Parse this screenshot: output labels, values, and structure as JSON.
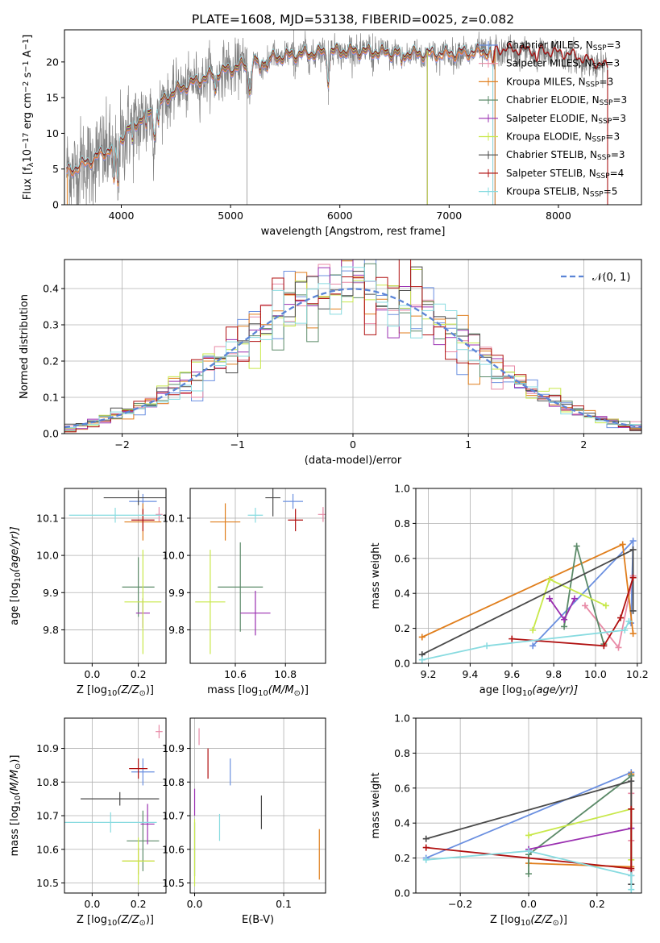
{
  "figure": {
    "title": "PLATE=1608, MJD=53138, FIBERID=0025, z=0.082"
  },
  "colors": {
    "Chabrier MILES": "#6a8fe0",
    "Salpeter MILES": "#e88aa6",
    "Kroupa MILES": "#e07e1c",
    "Chabrier ELODIE": "#5b8a68",
    "Salpeter ELODIE": "#9a2fb0",
    "Kroupa ELODIE": "#c8e84a",
    "Chabrier STELIB": "#4a4a4a",
    "Salpeter STELIB": "#b01010",
    "Kroupa STELIB": "#88dbe0",
    "data": "#808080",
    "gaussian": "#5b84d6",
    "grid": "#b0b0b0"
  },
  "chart_data": [
    {
      "id": "spectrum",
      "type": "line",
      "xlabel": "wavelength [Angstrom, rest frame]",
      "ylabel": "Flux [f",
      "ylabel_sub": "λ",
      "ylabel_rest": "10",
      "ylabel_sup": "−17",
      "ylabel_rest2": " erg cm",
      "ylabel_sup2": "−2",
      "ylabel_rest3": " s",
      "ylabel_sup3": "−1",
      "ylabel_rest4": " A",
      "ylabel_sup4": "−1",
      "ylabel_end": "]",
      "xlim": [
        3480,
        8760
      ],
      "ylim": [
        0,
        24.5
      ],
      "xticks": [
        4000,
        5000,
        6000,
        7000,
        8000
      ],
      "yticks": [
        0,
        5,
        10,
        15,
        20
      ],
      "grid": false,
      "legend": "top-right",
      "data_range": [
        3500,
        8450
      ],
      "continuum_knots": [
        [
          3500,
          4.5
        ],
        [
          3700,
          6.0
        ],
        [
          3900,
          7.8
        ],
        [
          4100,
          11.0
        ],
        [
          4300,
          13.5
        ],
        [
          4500,
          16.0
        ],
        [
          4800,
          18.0
        ],
        [
          5000,
          19.0
        ],
        [
          5300,
          20.3
        ],
        [
          5600,
          21.0
        ],
        [
          6000,
          21.5
        ],
        [
          6300,
          21.4
        ],
        [
          6600,
          21.1
        ],
        [
          7000,
          21.1
        ],
        [
          7400,
          21.5
        ],
        [
          7800,
          21.3
        ],
        [
          8100,
          20.8
        ],
        [
          8450,
          19.0
        ]
      ],
      "absorption_lines": [
        [
          3934,
          6.0,
          8
        ],
        [
          3968,
          6.0,
          8
        ],
        [
          4102,
          3.0,
          6
        ],
        [
          4226,
          2.5,
          6
        ],
        [
          4304,
          3.5,
          12
        ],
        [
          4340,
          3.0,
          6
        ],
        [
          4861,
          2.5,
          6
        ],
        [
          5175,
          3.5,
          14
        ],
        [
          5270,
          2.0,
          8
        ],
        [
          5335,
          1.5,
          8
        ],
        [
          5893,
          4.0,
          8
        ],
        [
          6563,
          2.0,
          6
        ],
        [
          7400,
          2.0,
          10
        ],
        [
          7800,
          1.5,
          10
        ]
      ],
      "models": [
        {
          "name": "Chabrier MILES",
          "label": "Chabrier MILES, N",
          "sub": "SSP",
          "suffix": "=3"
        },
        {
          "name": "Salpeter MILES",
          "label": "Salpeter MILES, N",
          "sub": "SSP",
          "suffix": "=3"
        },
        {
          "name": "Kroupa MILES",
          "label": "Kroupa MILES, N",
          "sub": "SSP",
          "suffix": "=3"
        },
        {
          "name": "Chabrier ELODIE",
          "label": "Chabrier ELODIE, N",
          "sub": "SSP",
          "suffix": "=3"
        },
        {
          "name": "Salpeter ELODIE",
          "label": "Salpeter ELODIE, N",
          "sub": "SSP",
          "suffix": "=3"
        },
        {
          "name": "Kroupa ELODIE",
          "label": "Kroupa ELODIE, N",
          "sub": "SSP",
          "suffix": "=3"
        },
        {
          "name": "Chabrier STELIB",
          "label": "Chabrier STELIB, N",
          "sub": "SSP",
          "suffix": "=3"
        },
        {
          "name": "Salpeter STELIB",
          "label": "Salpeter STELIB, N",
          "sub": "SSP",
          "suffix": "=4"
        },
        {
          "name": "Kroupa STELIB",
          "label": "Kroupa STELIB, N",
          "sub": "SSP",
          "suffix": "=5"
        }
      ],
      "model_ranges": [
        [
          3500,
          7420
        ],
        [
          3500,
          7400
        ],
        [
          3500,
          7420
        ],
        [
          4000,
          6800
        ],
        [
          4000,
          6800
        ],
        [
          4000,
          6800
        ],
        [
          3500,
          8450
        ],
        [
          3500,
          8450
        ],
        [
          3500,
          7400
        ]
      ]
    },
    {
      "id": "residuals",
      "type": "line",
      "xlabel": "(data-model)/error",
      "ylabel": "Normed distribution",
      "xlim": [
        -2.5,
        2.5
      ],
      "ylim": [
        0,
        0.48
      ],
      "xticks": [
        -2,
        -1,
        0,
        1,
        2
      ],
      "yticks": [
        0.0,
        0.1,
        0.2,
        0.3,
        0.4
      ],
      "grid": true,
      "legend": "top-right",
      "legend_label": "𝒩(0, 1)",
      "bin_width": 0.1,
      "gaussian": {
        "mean": 0,
        "sigma": 1
      }
    },
    {
      "id": "age_z",
      "type": "scatter",
      "xlabel": "Z [log",
      "xlabel_sub": "10",
      "xlabel_rest": "(Z/Z",
      "xlabel_sub2": "⊙",
      "xlabel_end": ")]",
      "ylabel": "age  [log",
      "ylabel_sub": "10",
      "ylabel_rest": "(age/yr)]",
      "xlim": [
        -0.12,
        0.32
      ],
      "ylim": [
        9.71,
        10.18
      ],
      "xticks": [
        0.0,
        0.2
      ],
      "yticks": [
        9.8,
        9.9,
        10.0,
        10.1
      ],
      "grid": true,
      "points": [
        {
          "model": "Chabrier MILES",
          "x": 0.22,
          "y": 10.145,
          "xerr": 0.06,
          "yerr": 0.02
        },
        {
          "model": "Salpeter MILES",
          "x": 0.29,
          "y": 10.11,
          "xerr": 0.015,
          "yerr": 0.02
        },
        {
          "model": "Kroupa MILES",
          "x": 0.22,
          "y": 10.09,
          "xerr": 0.08,
          "yerr": 0.05
        },
        {
          "model": "Chabrier ELODIE",
          "x": 0.2,
          "y": 9.915,
          "xerr": 0.07,
          "yerr": 0.08
        },
        {
          "model": "Salpeter ELODIE",
          "x": 0.22,
          "y": 9.845,
          "xerr": 0.03,
          "yerr": 0.04
        },
        {
          "model": "Kroupa ELODIE",
          "x": 0.22,
          "y": 9.875,
          "xerr": 0.08,
          "yerr": 0.14
        },
        {
          "model": "Chabrier STELIB",
          "x": 0.2,
          "y": 10.155,
          "xerr": 0.15,
          "yerr": 0.02
        },
        {
          "model": "Salpeter STELIB",
          "x": 0.22,
          "y": 10.095,
          "xerr": 0.05,
          "yerr": 0.03
        },
        {
          "model": "Kroupa STELIB",
          "x": 0.1,
          "y": 10.108,
          "xerr": 0.2,
          "yerr": 0.02
        }
      ]
    },
    {
      "id": "age_mass",
      "type": "scatter",
      "xlabel": "mass [log",
      "xlabel_sub": "10",
      "xlabel_rest": "(M/M",
      "xlabel_sub2": "⊙",
      "xlabel_end": ")]",
      "ylabel": "",
      "xlim": [
        10.42,
        10.96
      ],
      "ylim": [
        9.71,
        10.18
      ],
      "xticks": [
        10.6,
        10.8
      ],
      "yticks": [
        9.8,
        9.9,
        10.0,
        10.1
      ],
      "grid": true,
      "points": [
        {
          "model": "Chabrier MILES",
          "x": 10.83,
          "y": 10.145,
          "xerr": 0.04,
          "yerr": 0.02
        },
        {
          "model": "Salpeter MILES",
          "x": 10.95,
          "y": 10.11,
          "xerr": 0.02,
          "yerr": 0.02
        },
        {
          "model": "Kroupa MILES",
          "x": 10.56,
          "y": 10.09,
          "xerr": 0.06,
          "yerr": 0.05
        },
        {
          "model": "Chabrier ELODIE",
          "x": 10.62,
          "y": 9.915,
          "xerr": 0.09,
          "yerr": 0.12
        },
        {
          "model": "Salpeter ELODIE",
          "x": 10.68,
          "y": 9.845,
          "xerr": 0.06,
          "yerr": 0.06
        },
        {
          "model": "Kroupa ELODIE",
          "x": 10.5,
          "y": 9.875,
          "xerr": 0.06,
          "yerr": 0.14
        },
        {
          "model": "Chabrier STELIB",
          "x": 10.75,
          "y": 10.155,
          "xerr": 0.03,
          "yerr": 0.05
        },
        {
          "model": "Salpeter STELIB",
          "x": 10.84,
          "y": 10.095,
          "xerr": 0.03,
          "yerr": 0.03
        },
        {
          "model": "Kroupa STELIB",
          "x": 10.68,
          "y": 10.108,
          "xerr": 0.03,
          "yerr": 0.02
        }
      ]
    },
    {
      "id": "weight_age",
      "type": "line",
      "xlabel": "age  [log",
      "xlabel_sub": "10",
      "xlabel_rest": "(age/yr)]",
      "ylabel": "mass weight",
      "xlim": [
        9.14,
        10.22
      ],
      "ylim": [
        0,
        1.0
      ],
      "xticks": [
        9.2,
        9.4,
        9.6,
        9.8,
        10.0,
        10.2
      ],
      "yticks": [
        0.0,
        0.2,
        0.4,
        0.6,
        0.8,
        1.0
      ],
      "grid": true,
      "series": [
        {
          "model": "Chabrier MILES",
          "x": [
            9.7,
            10.18,
            10.17
          ],
          "y": [
            0.1,
            0.7,
            0.23
          ]
        },
        {
          "model": "Salpeter MILES",
          "x": [
            9.95,
            10.11,
            10.18
          ],
          "y": [
            0.33,
            0.09,
            0.5
          ]
        },
        {
          "model": "Kroupa MILES",
          "x": [
            9.17,
            10.13,
            10.18
          ],
          "y": [
            0.15,
            0.68,
            0.17
          ]
        },
        {
          "model": "Chabrier ELODIE",
          "x": [
            9.85,
            9.91,
            10.04
          ],
          "y": [
            0.21,
            0.67,
            0.11
          ]
        },
        {
          "model": "Salpeter ELODIE",
          "x": [
            9.78,
            9.85,
            9.9
          ],
          "y": [
            0.37,
            0.25,
            0.37
          ]
        },
        {
          "model": "Kroupa ELODIE",
          "x": [
            9.7,
            9.78,
            10.05
          ],
          "y": [
            0.19,
            0.48,
            0.33
          ]
        },
        {
          "model": "Chabrier STELIB",
          "x": [
            9.17,
            10.18,
            10.18
          ],
          "y": [
            0.05,
            0.65,
            0.3
          ]
        },
        {
          "model": "Salpeter STELIB",
          "x": [
            9.6,
            10.04,
            10.12,
            10.18
          ],
          "y": [
            0.14,
            0.1,
            0.26,
            0.49
          ]
        },
        {
          "model": "Kroupa STELIB",
          "x": [
            9.17,
            9.48,
            10.14,
            10.16
          ],
          "y": [
            0.02,
            0.1,
            0.19,
            0.24
          ]
        }
      ]
    },
    {
      "id": "mass_z",
      "type": "scatter",
      "xlabel": "Z [log",
      "xlabel_sub": "10",
      "xlabel_rest": "(Z/Z",
      "xlabel_sub2": "⊙",
      "xlabel_end": ")]",
      "ylabel": "mass [log",
      "ylabel_sub": "10",
      "ylabel_rest": "(M/M",
      "ylabel_sub2": "⊙",
      "ylabel_end": ")]",
      "xlim": [
        -0.12,
        0.32
      ],
      "ylim": [
        10.47,
        10.99
      ],
      "xticks": [
        0.0,
        0.2
      ],
      "yticks": [
        10.5,
        10.6,
        10.7,
        10.8,
        10.9
      ],
      "grid": true,
      "points": [
        {
          "model": "Chabrier MILES",
          "x": 0.22,
          "y": 10.83,
          "xerr": 0.05,
          "yerr": 0.04
        },
        {
          "model": "Salpeter MILES",
          "x": 0.29,
          "y": 10.95,
          "xerr": 0.015,
          "yerr": 0.02
        },
        {
          "model": "Kroupa MILES",
          "x": 0.2,
          "y": 10.565,
          "xerr": 0.07,
          "yerr": 0.04
        },
        {
          "model": "Chabrier ELODIE",
          "x": 0.22,
          "y": 10.625,
          "xerr": 0.07,
          "yerr": 0.09
        },
        {
          "model": "Salpeter ELODIE",
          "x": 0.24,
          "y": 10.675,
          "xerr": 0.03,
          "yerr": 0.06
        },
        {
          "model": "Kroupa ELODIE",
          "x": 0.2,
          "y": 10.565,
          "xerr": 0.07,
          "yerr": 0.07
        },
        {
          "model": "Chabrier STELIB",
          "x": 0.12,
          "y": 10.75,
          "xerr": 0.17,
          "yerr": 0.02
        },
        {
          "model": "Salpeter STELIB",
          "x": 0.2,
          "y": 10.84,
          "xerr": 0.04,
          "yerr": 0.03
        },
        {
          "model": "Kroupa STELIB",
          "x": 0.08,
          "y": 10.68,
          "xerr": 0.2,
          "yerr": 0.03
        }
      ]
    },
    {
      "id": "mass_ebv",
      "type": "scatter",
      "xlabel": "E(B-V)",
      "ylabel": "",
      "xlim": [
        -0.005,
        0.147
      ],
      "ylim": [
        10.47,
        10.99
      ],
      "xticks": [
        0.0,
        0.1
      ],
      "yticks": [
        10.5,
        10.6,
        10.7,
        10.8,
        10.9
      ],
      "grid": true,
      "points": [
        {
          "model": "Chabrier MILES",
          "x": 0.04,
          "y": 10.83,
          "xerr": 0,
          "yerr": 0.04
        },
        {
          "model": "Salpeter MILES",
          "x": 0.005,
          "y": 10.935,
          "xerr": 0,
          "yerr": 0.025
        },
        {
          "model": "Kroupa MILES",
          "x": 0.14,
          "y": 10.585,
          "xerr": 0,
          "yerr": 0.075
        },
        {
          "model": "Chabrier ELODIE",
          "x": 0.0,
          "y": 10.6,
          "xerr": 0,
          "yerr": 0.08
        },
        {
          "model": "Salpeter ELODIE",
          "x": 0.0,
          "y": 10.74,
          "xerr": 0,
          "yerr": 0.04
        },
        {
          "model": "Kroupa ELODIE",
          "x": 0.0,
          "y": 10.59,
          "xerr": 0,
          "yerr": 0.1
        },
        {
          "model": "Chabrier STELIB",
          "x": 0.075,
          "y": 10.71,
          "xerr": 0,
          "yerr": 0.05
        },
        {
          "model": "Salpeter STELIB",
          "x": 0.015,
          "y": 10.855,
          "xerr": 0,
          "yerr": 0.045
        },
        {
          "model": "Kroupa STELIB",
          "x": 0.028,
          "y": 10.665,
          "xerr": 0,
          "yerr": 0.04
        }
      ]
    },
    {
      "id": "weight_z",
      "type": "line",
      "xlabel": "Z [log",
      "xlabel_sub": "10",
      "xlabel_rest": "(Z/Z",
      "xlabel_sub2": "⊙",
      "xlabel_end": ")]",
      "ylabel": "mass weight",
      "xlim": [
        -0.33,
        0.33
      ],
      "ylim": [
        0,
        1.0
      ],
      "xticks": [
        -0.2,
        0.0,
        0.2
      ],
      "yticks": [
        0.0,
        0.2,
        0.4,
        0.6,
        0.8,
        1.0
      ],
      "grid": true,
      "series": [
        {
          "model": "Chabrier MILES",
          "x": [
            -0.3,
            0.3,
            0.3
          ],
          "y": [
            0.2,
            0.69,
            0.1
          ]
        },
        {
          "model": "Salpeter MILES",
          "x": [
            0.3,
            0.3,
            0.3
          ],
          "y": [
            0.57,
            0.3,
            0.13
          ]
        },
        {
          "model": "Kroupa MILES",
          "x": [
            0.0,
            0.3,
            0.3
          ],
          "y": [
            0.17,
            0.15,
            0.68
          ]
        },
        {
          "model": "Chabrier ELODIE",
          "x": [
            0.0,
            0.0,
            0.3
          ],
          "y": [
            0.11,
            0.22,
            0.67
          ]
        },
        {
          "model": "Salpeter ELODIE",
          "x": [
            0.0,
            0.3,
            0.3
          ],
          "y": [
            0.25,
            0.37,
            0.37
          ]
        },
        {
          "model": "Kroupa ELODIE",
          "x": [
            0.0,
            0.3,
            0.3
          ],
          "y": [
            0.33,
            0.48,
            0.19
          ]
        },
        {
          "model": "Chabrier STELIB",
          "x": [
            -0.3,
            0.3,
            0.3
          ],
          "y": [
            0.31,
            0.64,
            0.05
          ]
        },
        {
          "model": "Salpeter STELIB",
          "x": [
            -0.3,
            0.3,
            0.3
          ],
          "y": [
            0.26,
            0.14,
            0.48
          ]
        },
        {
          "model": "Kroupa STELIB",
          "x": [
            -0.3,
            0.0,
            0.3,
            0.3
          ],
          "y": [
            0.19,
            0.24,
            0.1,
            0.02
          ]
        }
      ]
    }
  ]
}
